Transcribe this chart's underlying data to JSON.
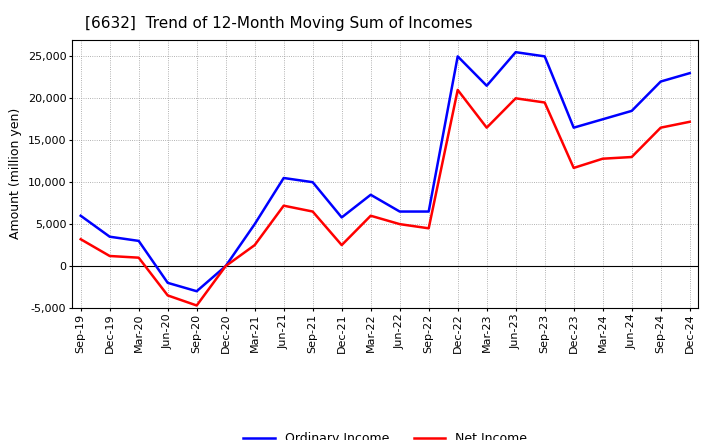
{
  "title": "[6632]  Trend of 12-Month Moving Sum of Incomes",
  "ylabel": "Amount (million yen)",
  "x_labels": [
    "Sep-19",
    "Dec-19",
    "Mar-20",
    "Jun-20",
    "Sep-20",
    "Dec-20",
    "Mar-21",
    "Jun-21",
    "Sep-21",
    "Dec-21",
    "Mar-22",
    "Jun-22",
    "Sep-22",
    "Dec-22",
    "Mar-23",
    "Jun-23",
    "Sep-23",
    "Dec-23",
    "Mar-24",
    "Jun-24",
    "Sep-24",
    "Dec-24"
  ],
  "ordinary_income": [
    6000,
    3500,
    3000,
    -2000,
    -3000,
    0,
    5000,
    10500,
    10000,
    5800,
    8500,
    6500,
    6500,
    25000,
    21500,
    25500,
    25000,
    16500,
    17500,
    18500,
    22000,
    23000
  ],
  "net_income": [
    3200,
    1200,
    1000,
    -3500,
    -4700,
    0,
    2500,
    7200,
    6500,
    2500,
    6000,
    5000,
    4500,
    21000,
    16500,
    20000,
    19500,
    11700,
    12800,
    13000,
    16500,
    17200
  ],
  "ordinary_income_color": "#0000FF",
  "net_income_color": "#FF0000",
  "background_color": "#FFFFFF",
  "plot_bg_color": "#FFFFFF",
  "grid_color": "#999999",
  "ylim": [
    -5000,
    27000
  ],
  "yticks": [
    -5000,
    0,
    5000,
    10000,
    15000,
    20000,
    25000
  ],
  "line_width": 1.8,
  "title_fontsize": 11,
  "axis_fontsize": 9,
  "tick_fontsize": 8
}
